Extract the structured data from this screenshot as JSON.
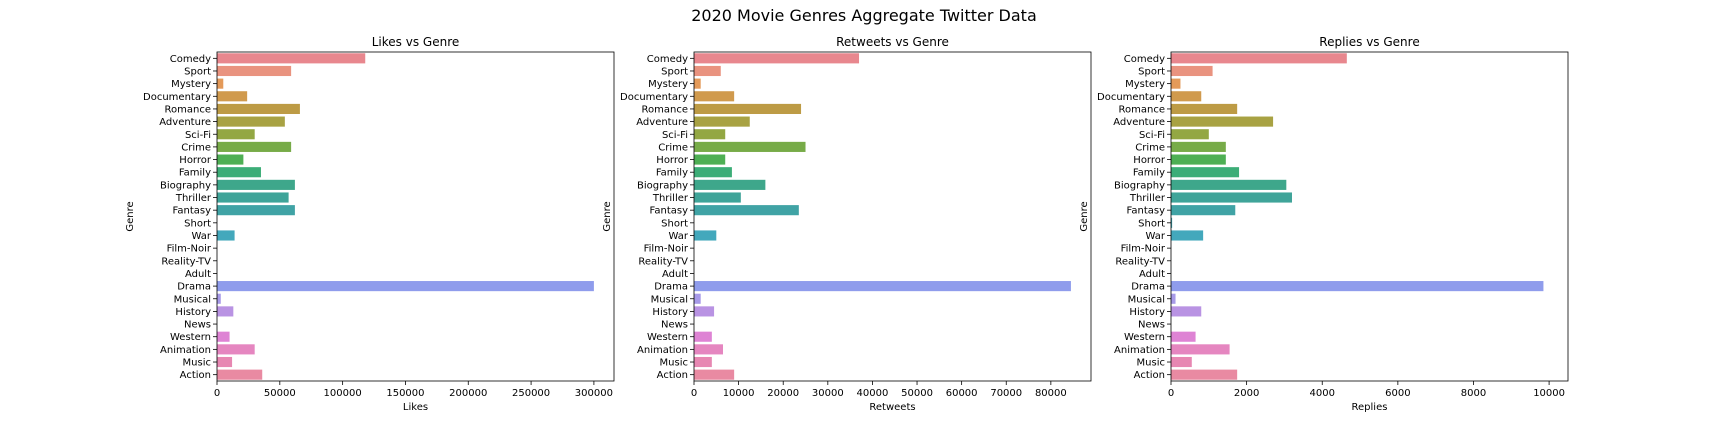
{
  "suptitle": "2020 Movie Genres Aggregate Twitter Data",
  "colors": [
    "#e8878e",
    "#e9937f",
    "#e49a59",
    "#d09a4d",
    "#bd9b45",
    "#a8a243",
    "#93a743",
    "#77ab48",
    "#4eaf54",
    "#3cad77",
    "#3ea78b",
    "#3fa499",
    "#40a3a5",
    "#40a5b0",
    "#43a8bc",
    "#4aa8c9",
    "#56a2d9",
    "#7c9cea",
    "#8f9cec",
    "#a79ae8",
    "#b993e3",
    "#cd8be0",
    "#de83d4",
    "#e586c0",
    "#e787b2",
    "#e98aa2"
  ],
  "chart_data": [
    {
      "type": "bar",
      "orientation": "horizontal",
      "title": "Likes vs Genre",
      "xlabel": "Likes",
      "ylabel": "Genre",
      "xlim": [
        0,
        316000
      ],
      "xticks": [
        0,
        50000,
        100000,
        150000,
        200000,
        250000,
        300000
      ],
      "xtick_labels": [
        "0",
        "50000",
        "100000",
        "150000",
        "200000",
        "250000",
        "300000"
      ],
      "categories": [
        "Comedy",
        "Sport",
        "Mystery",
        "Documentary",
        "Romance",
        "Adventure",
        "Sci-Fi",
        "Crime",
        "Horror",
        "Family",
        "Biography",
        "Thriller",
        "Fantasy",
        "Short",
        "War",
        "Film-Noir",
        "Reality-TV",
        "Adult",
        "Drama",
        "Musical",
        "History",
        "News",
        "Western",
        "Animation",
        "Music",
        "Action"
      ],
      "values": [
        118000,
        59000,
        5000,
        24000,
        66000,
        54000,
        30000,
        59000,
        21000,
        35000,
        62000,
        57000,
        62000,
        0,
        14000,
        0,
        0,
        0,
        300000,
        3000,
        13000,
        0,
        10000,
        30000,
        12000,
        36000
      ]
    },
    {
      "type": "bar",
      "orientation": "horizontal",
      "title": "Retweets vs Genre",
      "xlabel": "Retweets",
      "ylabel": "Genre",
      "xlim": [
        0,
        89000
      ],
      "xticks": [
        0,
        10000,
        20000,
        30000,
        40000,
        50000,
        60000,
        70000,
        80000
      ],
      "xtick_labels": [
        "0",
        "10000",
        "20000",
        "30000",
        "40000",
        "50000",
        "60000",
        "70000",
        "80000"
      ],
      "categories": [
        "Comedy",
        "Sport",
        "Mystery",
        "Documentary",
        "Romance",
        "Adventure",
        "Sci-Fi",
        "Crime",
        "Horror",
        "Family",
        "Biography",
        "Thriller",
        "Fantasy",
        "Short",
        "War",
        "Film-Noir",
        "Reality-TV",
        "Adult",
        "Drama",
        "Musical",
        "History",
        "News",
        "Western",
        "Animation",
        "Music",
        "Action"
      ],
      "values": [
        37000,
        6000,
        1500,
        9000,
        24000,
        12500,
        7000,
        25000,
        7000,
        8500,
        16000,
        10500,
        23500,
        0,
        5000,
        0,
        0,
        0,
        84500,
        1500,
        4500,
        0,
        4000,
        6500,
        4000,
        9000
      ]
    },
    {
      "type": "bar",
      "orientation": "horizontal",
      "title": "Replies vs Genre",
      "xlabel": "Replies",
      "ylabel": "Genre",
      "xlim": [
        0,
        10500
      ],
      "xticks": [
        0,
        2000,
        4000,
        6000,
        8000,
        10000
      ],
      "xtick_labels": [
        "0",
        "2000",
        "4000",
        "6000",
        "8000",
        "10000"
      ],
      "categories": [
        "Comedy",
        "Sport",
        "Mystery",
        "Documentary",
        "Romance",
        "Adventure",
        "Sci-Fi",
        "Crime",
        "Horror",
        "Family",
        "Biography",
        "Thriller",
        "Fantasy",
        "Short",
        "War",
        "Film-Noir",
        "Reality-TV",
        "Adult",
        "Drama",
        "Musical",
        "History",
        "News",
        "Western",
        "Animation",
        "Music",
        "Action"
      ],
      "values": [
        4650,
        1100,
        250,
        800,
        1750,
        2700,
        1000,
        1450,
        1450,
        1800,
        3050,
        3200,
        1700,
        30,
        850,
        0,
        0,
        0,
        9850,
        120,
        800,
        0,
        650,
        1550,
        550,
        1750
      ]
    }
  ]
}
